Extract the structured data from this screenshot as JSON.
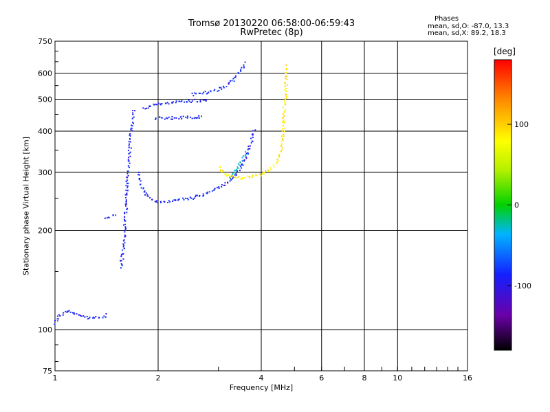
{
  "header": {
    "title": "Tromsø 20130220 06:58:00-06:59:43",
    "subtitle": "RwPretec (8p)",
    "phases_title": "Phases",
    "phase_o": "mean, sd,O: -87.0, 13.3",
    "phase_x": "mean, sd,X:  89.2, 18.3"
  },
  "chart_data": {
    "type": "scatter",
    "title": "Tromsø 20130220 06:58:00-06:59:43",
    "subtitle": "RwPretec (8p)",
    "xlabel": "Frequency [MHz]",
    "ylabel": "Stationary phase Virtual Height [km]",
    "x_scale": "log",
    "y_scale": "log",
    "xlim": [
      1,
      16
    ],
    "ylim": [
      75,
      750
    ],
    "x_ticks": [
      1,
      2,
      4,
      6,
      8,
      10,
      16
    ],
    "y_ticks": [
      75,
      100,
      200,
      300,
      400,
      500,
      600,
      750
    ],
    "x_gridlines": [
      2,
      4,
      6,
      8,
      10
    ],
    "y_gridlines": [
      100,
      200,
      300,
      400,
      500,
      600
    ],
    "grid": true,
    "colorbar": {
      "label": "[deg]",
      "range": [
        -180,
        180
      ],
      "ticks": [
        100,
        0,
        -100
      ]
    },
    "traces": [
      {
        "phase": -100,
        "points": [
          [
            1.0,
            105
          ],
          [
            1.02,
            110
          ],
          [
            1.05,
            113
          ],
          [
            1.08,
            115
          ],
          [
            1.12,
            113
          ],
          [
            1.18,
            110
          ],
          [
            1.25,
            109
          ],
          [
            1.32,
            109
          ],
          [
            1.38,
            110
          ],
          [
            1.42,
            112
          ]
        ]
      },
      {
        "phase": -100,
        "points": [
          [
            1.4,
            220
          ],
          [
            1.46,
            222
          ],
          [
            1.5,
            225
          ]
        ]
      },
      {
        "phase": -100,
        "points": [
          [
            1.55,
            155
          ],
          [
            1.57,
            170
          ],
          [
            1.59,
            200
          ],
          [
            1.61,
            250
          ],
          [
            1.63,
            320
          ],
          [
            1.66,
            400
          ],
          [
            1.69,
            470
          ]
        ]
      },
      {
        "phase": -100,
        "points": [
          [
            1.75,
            300
          ],
          [
            1.79,
            270
          ],
          [
            1.83,
            258
          ],
          [
            1.9,
            250
          ],
          [
            2.0,
            245
          ],
          [
            2.2,
            247
          ],
          [
            2.5,
            252
          ],
          [
            2.8,
            262
          ],
          [
            3.1,
            275
          ],
          [
            3.3,
            290
          ],
          [
            3.5,
            315
          ],
          [
            3.7,
            365
          ],
          [
            3.8,
            410
          ]
        ]
      },
      {
        "phase": -100,
        "points": [
          [
            1.8,
            470
          ],
          [
            1.9,
            480
          ],
          [
            2.1,
            488
          ],
          [
            2.4,
            495
          ],
          [
            2.8,
            500
          ]
        ]
      },
      {
        "phase": -100,
        "points": [
          [
            1.95,
            440
          ],
          [
            2.1,
            440
          ],
          [
            2.4,
            442
          ],
          [
            2.7,
            445
          ]
        ]
      },
      {
        "phase": -100,
        "points": [
          [
            2.5,
            520
          ],
          [
            2.8,
            528
          ],
          [
            3.1,
            545
          ],
          [
            3.3,
            575
          ],
          [
            3.5,
            625
          ],
          [
            3.6,
            650
          ]
        ]
      },
      {
        "phase": -30,
        "points": [
          [
            3.2,
            290
          ],
          [
            3.3,
            300
          ],
          [
            3.45,
            320
          ],
          [
            3.6,
            350
          ]
        ]
      },
      {
        "phase": 110,
        "points": [
          [
            3.0,
            315
          ],
          [
            3.1,
            300
          ],
          [
            3.25,
            292
          ],
          [
            3.5,
            290
          ],
          [
            3.8,
            293
          ],
          [
            4.1,
            300
          ],
          [
            4.4,
            320
          ],
          [
            4.55,
            350
          ],
          [
            4.62,
            400
          ],
          [
            4.66,
            470
          ],
          [
            4.7,
            540
          ],
          [
            4.72,
            640
          ]
        ]
      }
    ]
  }
}
